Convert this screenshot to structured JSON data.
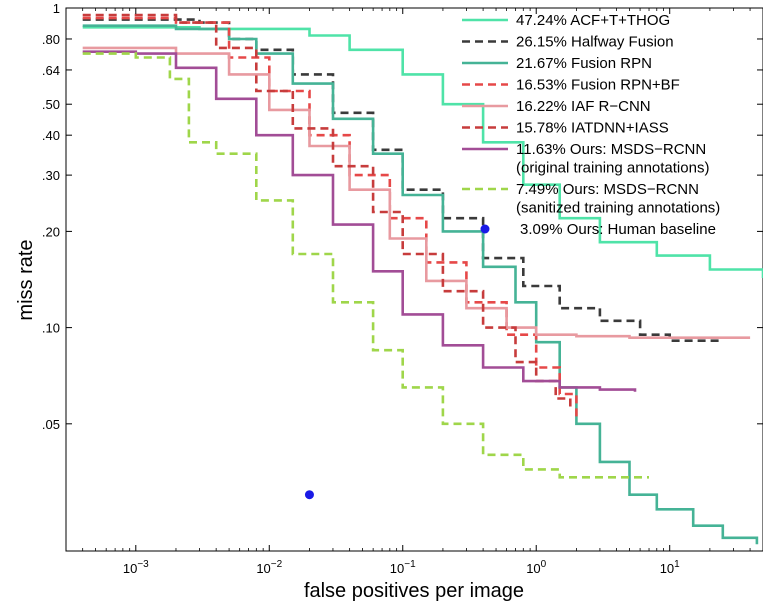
{
  "chart_data": {
    "type": "line",
    "title": "",
    "xlabel": "false positives per image",
    "ylabel": "miss rate",
    "xscale": "log",
    "yscale": "log",
    "xlim": [
      0.0003,
      50
    ],
    "ylim": [
      0.02,
      1
    ],
    "grid": false,
    "legend_position": "top-right",
    "x_ticks": [
      {
        "value": 0.001,
        "base": "10",
        "exp": "−3"
      },
      {
        "value": 0.01,
        "base": "10",
        "exp": "−2"
      },
      {
        "value": 0.1,
        "base": "10",
        "exp": "−1"
      },
      {
        "value": 1,
        "base": "10",
        "exp": "0"
      },
      {
        "value": 10,
        "base": "10",
        "exp": "1"
      }
    ],
    "y_ticks": [
      {
        "value": 0.05,
        "label": ".05"
      },
      {
        "value": 0.1,
        "label": ".10"
      },
      {
        "value": 0.2,
        "label": ".20"
      },
      {
        "value": 0.3,
        "label": ".30"
      },
      {
        "value": 0.4,
        "label": ".40"
      },
      {
        "value": 0.5,
        "label": ".50"
      },
      {
        "value": 0.64,
        "label": ".64"
      },
      {
        "value": 0.8,
        "label": ".80"
      },
      {
        "value": 1.0,
        "label": "1"
      }
    ],
    "series": [
      {
        "name": "47.24% ACF+T+THOG",
        "color": "#4fe3a8",
        "dash": "solid",
        "points": [
          [
            0.0004,
            0.87
          ],
          [
            0.003,
            0.86
          ],
          [
            0.02,
            0.82
          ],
          [
            0.04,
            0.74
          ],
          [
            0.1,
            0.62
          ],
          [
            0.2,
            0.5
          ],
          [
            0.4,
            0.38
          ],
          [
            0.8,
            0.28
          ],
          [
            1.5,
            0.22
          ],
          [
            3,
            0.185
          ],
          [
            8,
            0.168
          ],
          [
            20,
            0.152
          ],
          [
            50,
            0.143
          ]
        ]
      },
      {
        "name": "26.15% Halfway Fusion",
        "color": "#3a3a3a",
        "dash": "dashed",
        "points": [
          [
            0.0004,
            0.92
          ],
          [
            0.003,
            0.9
          ],
          [
            0.005,
            0.8
          ],
          [
            0.008,
            0.74
          ],
          [
            0.015,
            0.62
          ],
          [
            0.03,
            0.47
          ],
          [
            0.06,
            0.36
          ],
          [
            0.1,
            0.27
          ],
          [
            0.2,
            0.22
          ],
          [
            0.4,
            0.165
          ],
          [
            0.8,
            0.135
          ],
          [
            1.5,
            0.115
          ],
          [
            3,
            0.105
          ],
          [
            6,
            0.095
          ],
          [
            10,
            0.091
          ],
          [
            25,
            0.091
          ]
        ]
      },
      {
        "name": "21.67% Fusion RPN",
        "color": "#45b396",
        "dash": "solid",
        "points": [
          [
            0.0004,
            0.88
          ],
          [
            0.002,
            0.86
          ],
          [
            0.005,
            0.8
          ],
          [
            0.008,
            0.72
          ],
          [
            0.015,
            0.58
          ],
          [
            0.03,
            0.45
          ],
          [
            0.06,
            0.35
          ],
          [
            0.1,
            0.26
          ],
          [
            0.2,
            0.2
          ],
          [
            0.4,
            0.155
          ],
          [
            0.7,
            0.12
          ],
          [
            1.0,
            0.09
          ],
          [
            1.5,
            0.065
          ],
          [
            2,
            0.05
          ],
          [
            3,
            0.038
          ],
          [
            5,
            0.03
          ],
          [
            8,
            0.027
          ],
          [
            15,
            0.024
          ],
          [
            25,
            0.022
          ],
          [
            45,
            0.021
          ]
        ]
      },
      {
        "name": "16.53% Fusion RPN+BF",
        "color": "#e64848",
        "dash": "dashed",
        "points": [
          [
            0.0004,
            0.93
          ],
          [
            0.002,
            0.9
          ],
          [
            0.005,
            0.7
          ],
          [
            0.01,
            0.55
          ],
          [
            0.02,
            0.4
          ],
          [
            0.04,
            0.3
          ],
          [
            0.08,
            0.22
          ],
          [
            0.15,
            0.16
          ],
          [
            0.3,
            0.12
          ],
          [
            0.6,
            0.095
          ],
          [
            1.0,
            0.075
          ],
          [
            1.5,
            0.062
          ],
          [
            2,
            0.052
          ]
        ]
      },
      {
        "name": "16.22% IAF R−CNN",
        "color": "#e89aa0",
        "dash": "solid",
        "points": [
          [
            0.0004,
            0.75
          ],
          [
            0.002,
            0.72
          ],
          [
            0.005,
            0.62
          ],
          [
            0.01,
            0.48
          ],
          [
            0.02,
            0.37
          ],
          [
            0.04,
            0.27
          ],
          [
            0.08,
            0.19
          ],
          [
            0.15,
            0.14
          ],
          [
            0.3,
            0.115
          ],
          [
            0.6,
            0.1
          ],
          [
            1.0,
            0.095
          ],
          [
            2,
            0.094
          ],
          [
            5,
            0.093
          ],
          [
            10,
            0.093
          ],
          [
            40,
            0.093
          ]
        ]
      },
      {
        "name": "15.78% IATDNN+IASS",
        "color": "#c73c3c",
        "dash": "dashed",
        "points": [
          [
            0.0004,
            0.95
          ],
          [
            0.002,
            0.9
          ],
          [
            0.004,
            0.75
          ],
          [
            0.008,
            0.55
          ],
          [
            0.015,
            0.42
          ],
          [
            0.03,
            0.32
          ],
          [
            0.06,
            0.23
          ],
          [
            0.1,
            0.17
          ],
          [
            0.2,
            0.13
          ],
          [
            0.4,
            0.1
          ],
          [
            0.7,
            0.078
          ],
          [
            1.0,
            0.068
          ],
          [
            1.4,
            0.06
          ],
          [
            1.8,
            0.056
          ]
        ]
      },
      {
        "name": "11.63% Ours: MSDS−RCNN",
        "name_line2": "(original training annotations)",
        "color": "#a24d96",
        "dash": "solid",
        "points": [
          [
            0.0004,
            0.73
          ],
          [
            0.001,
            0.72
          ],
          [
            0.002,
            0.65
          ],
          [
            0.004,
            0.52
          ],
          [
            0.008,
            0.4
          ],
          [
            0.015,
            0.3
          ],
          [
            0.03,
            0.21
          ],
          [
            0.06,
            0.15
          ],
          [
            0.1,
            0.11
          ],
          [
            0.2,
            0.088
          ],
          [
            0.4,
            0.075
          ],
          [
            0.8,
            0.068
          ],
          [
            1.5,
            0.065
          ],
          [
            3,
            0.064
          ],
          [
            5.5,
            0.063
          ]
        ]
      },
      {
        "name": "7.49% Ours: MSDS−RCNN",
        "name_line2": "(sanitized training annotations)",
        "color": "#9fd64a",
        "dash": "dashed",
        "points": [
          [
            0.0004,
            0.72
          ],
          [
            0.001,
            0.7
          ],
          [
            0.0018,
            0.6
          ],
          [
            0.0025,
            0.38
          ],
          [
            0.004,
            0.35
          ],
          [
            0.008,
            0.25
          ],
          [
            0.015,
            0.17
          ],
          [
            0.03,
            0.12
          ],
          [
            0.06,
            0.085
          ],
          [
            0.1,
            0.065
          ],
          [
            0.2,
            0.05
          ],
          [
            0.4,
            0.04
          ],
          [
            0.8,
            0.036
          ],
          [
            1.5,
            0.034
          ],
          [
            3,
            0.034
          ],
          [
            7,
            0.034
          ]
        ]
      }
    ],
    "points": [
      {
        "name": "3.09% Ours: Human baseline",
        "color": "#1a1ae6",
        "x": 0.02,
        "y": 0.03
      }
    ]
  }
}
